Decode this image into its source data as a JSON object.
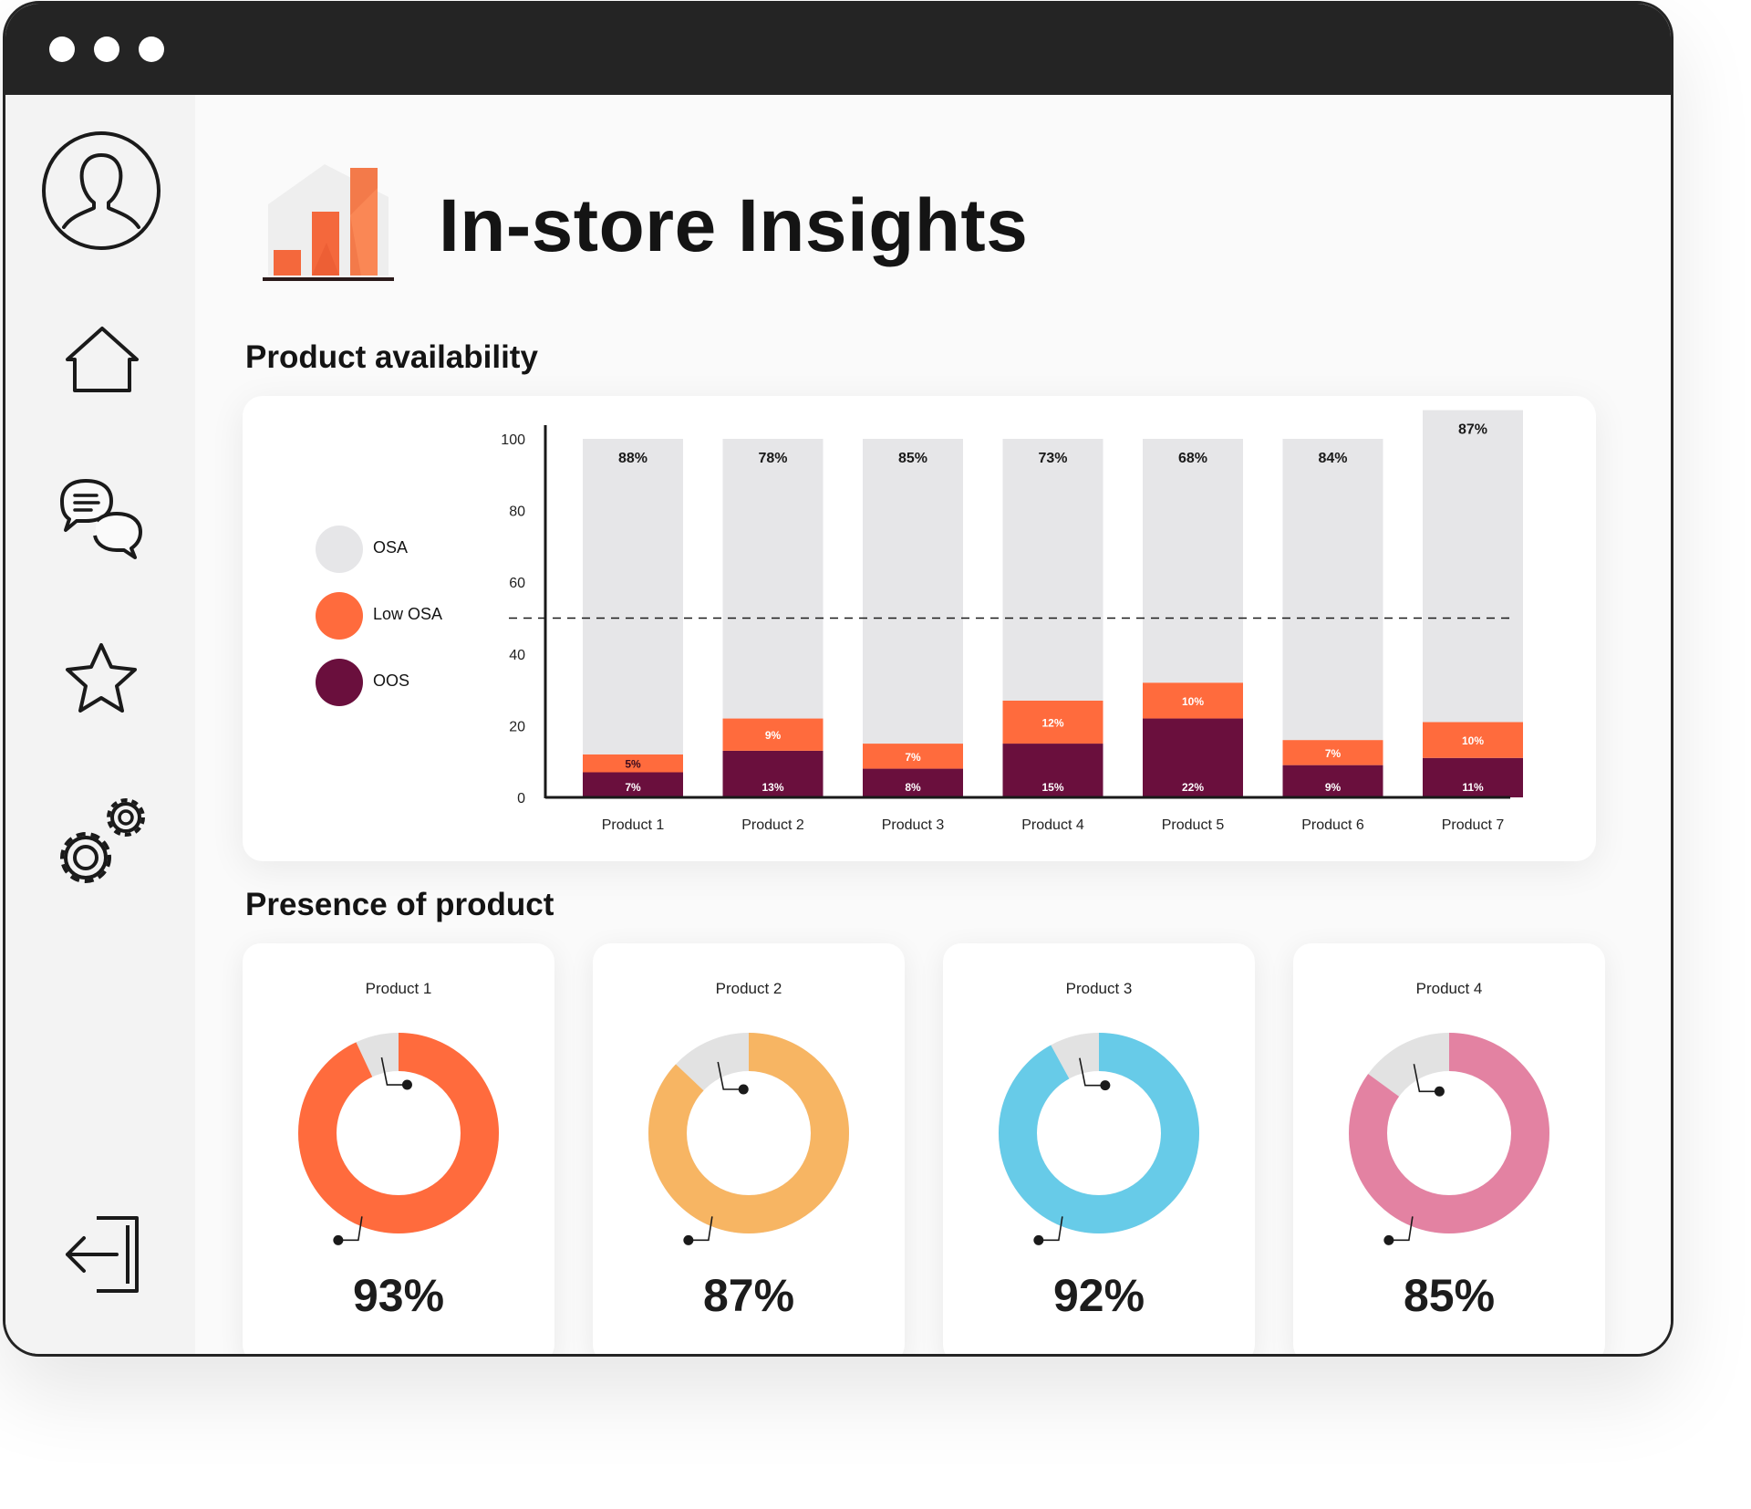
{
  "window": {
    "title": "In-store Insights",
    "titlebar_dots": 3
  },
  "sidebar": {
    "items": [
      {
        "name": "profile",
        "icon": "user-icon"
      },
      {
        "name": "home",
        "icon": "home-icon"
      },
      {
        "name": "messages",
        "icon": "chat-icon"
      },
      {
        "name": "favorites",
        "icon": "star-icon"
      },
      {
        "name": "settings",
        "icon": "gear-icon"
      },
      {
        "name": "logout",
        "icon": "logout-icon"
      }
    ]
  },
  "colors": {
    "osa": "#e6e6e8",
    "low_osa": "#ff6b3d",
    "oos": "#6a0f3d",
    "donut_gap": "#e2e2e2",
    "titlebar": "#242424"
  },
  "sections": {
    "availability": "Product availability",
    "presence": "Presence of product"
  },
  "chart_data": [
    {
      "type": "bar",
      "stacked": true,
      "title": "Product availability",
      "categories": [
        "Product 1",
        "Product 2",
        "Product 3",
        "Product 4",
        "Product 5",
        "Product 6",
        "Product 7"
      ],
      "series": [
        {
          "name": "OOS",
          "values": [
            7,
            13,
            8,
            15,
            22,
            9,
            11
          ],
          "labels": [
            "7%",
            "13%",
            "8%",
            "15%",
            "22%",
            "9%",
            "11%"
          ],
          "color": "#6a0f3d"
        },
        {
          "name": "Low OSA",
          "values": [
            5,
            9,
            7,
            12,
            10,
            7,
            10
          ],
          "labels": [
            "5%",
            "9%",
            "7%",
            "12%",
            "10%",
            "7%",
            "10%"
          ],
          "color": "#ff6b3d"
        },
        {
          "name": "OSA",
          "values": [
            88,
            78,
            85,
            73,
            68,
            84,
            87
          ],
          "labels": [
            "88%",
            "78%",
            "85%",
            "73%",
            "68%",
            "84%",
            "87%"
          ],
          "color": "#e6e6e8"
        }
      ],
      "ylim": [
        0,
        100
      ],
      "yticks": [
        "0",
        "20",
        "40",
        "60",
        "80",
        "100"
      ],
      "reference_line": 50,
      "legend_position": "left"
    },
    {
      "type": "pie",
      "donut": true,
      "title": "Presence of product",
      "charts": [
        {
          "label": "Product 1",
          "value": 93,
          "display": "93%",
          "color": "#ff6b3d"
        },
        {
          "label": "Product 2",
          "value": 87,
          "display": "87%",
          "color": "#f7b563"
        },
        {
          "label": "Product 3",
          "value": 92,
          "display": "92%",
          "color": "#67cbe8"
        },
        {
          "label": "Product 4",
          "value": 85,
          "display": "85%",
          "color": "#e382a2"
        }
      ]
    }
  ]
}
